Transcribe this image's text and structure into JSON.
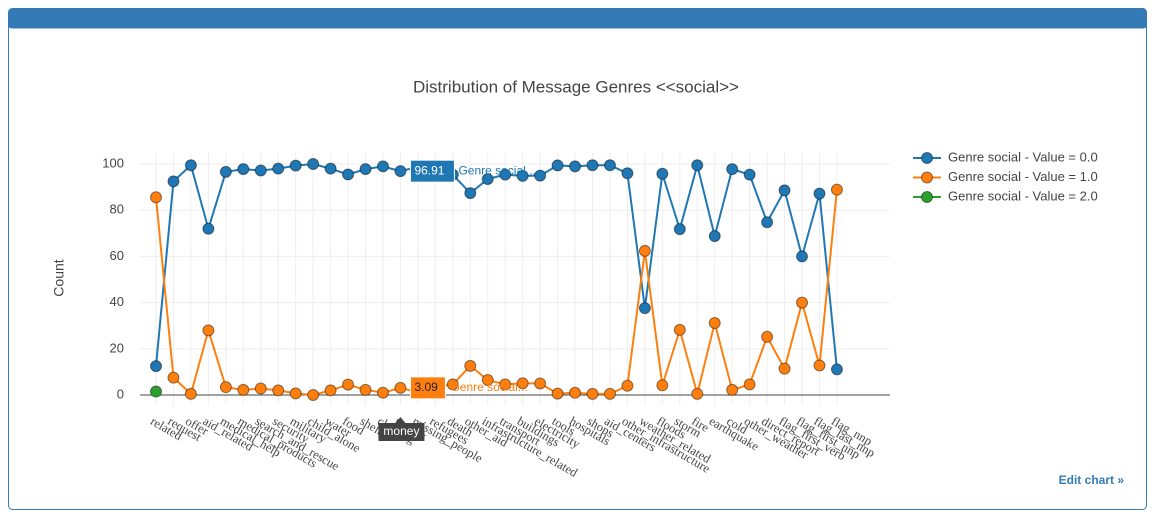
{
  "chart_data": {
    "type": "line",
    "title": "Distribution of Message Genres <<social>>",
    "y_label": "Count",
    "categories": [
      "related",
      "request",
      "offer",
      "aid_related",
      "medical_help",
      "medical_products",
      "search_and_rescue",
      "security",
      "military",
      "child_alone",
      "water",
      "food",
      "shelter",
      "clothing",
      "money",
      "missing_people",
      "refugees",
      "death",
      "other_aid",
      "infrastructure_related",
      "transport",
      "buildings",
      "electricity",
      "tools",
      "hospitals",
      "shops",
      "aid_centers",
      "other_infrastructure",
      "weather_related",
      "floods",
      "storm",
      "fire",
      "earthquake",
      "cold",
      "other_weather",
      "direct_report",
      "flag_first_verb",
      "flag_first_nnp",
      "flag_last_nnp",
      "flag_nnp"
    ],
    "series": [
      {
        "name": "Genre social - Value = 0.0",
        "color": "#1f77b4",
        "values": [
          12.5,
          92.5,
          99.5,
          72,
          96.6,
          97.8,
          97.2,
          98,
          99.3,
          100,
          98,
          95.5,
          97.8,
          99,
          96.91,
          98.8,
          96.6,
          95.4,
          87.4,
          93.5,
          95.4,
          94.9,
          95,
          99.4,
          99,
          99.5,
          99.5,
          96,
          37.6,
          95.8,
          71.8,
          99.5,
          68.8,
          97.8,
          95.4,
          74.8,
          88.6,
          60,
          87.2,
          11.1
        ]
      },
      {
        "name": "Genre social - Value = 1.0",
        "color": "#ff7f0e",
        "values": [
          85.6,
          7.5,
          0.5,
          28,
          3.4,
          2.2,
          2.8,
          2,
          0.7,
          0,
          2,
          4.5,
          2.2,
          1,
          3.09,
          1.2,
          3.4,
          4.6,
          12.6,
          6.5,
          4.6,
          5.1,
          5,
          0.6,
          1,
          0.5,
          0.5,
          4,
          62.4,
          4.2,
          28.2,
          0.5,
          31.2,
          2.2,
          4.6,
          25.2,
          11.4,
          40,
          12.8,
          88.9
        ]
      },
      {
        "name": "Genre social - Value = 2.0",
        "color": "#2ca02c",
        "values": [
          1.5,
          null,
          null,
          null,
          null,
          null,
          null,
          null,
          null,
          null,
          null,
          null,
          null,
          null,
          null,
          null,
          null,
          null,
          null,
          null,
          null,
          null,
          null,
          null,
          null,
          null,
          null,
          null,
          null,
          null,
          null,
          null,
          null,
          null,
          null,
          null,
          null,
          null,
          null,
          null
        ]
      }
    ],
    "ylim": [
      -4.5,
      105
    ],
    "yticks": [
      0,
      20,
      40,
      60,
      80,
      100
    ],
    "grid": true,
    "legend": "right",
    "hover": {
      "category": "money",
      "series_text": "Genre social..."
    },
    "link": "Edit chart »"
  }
}
